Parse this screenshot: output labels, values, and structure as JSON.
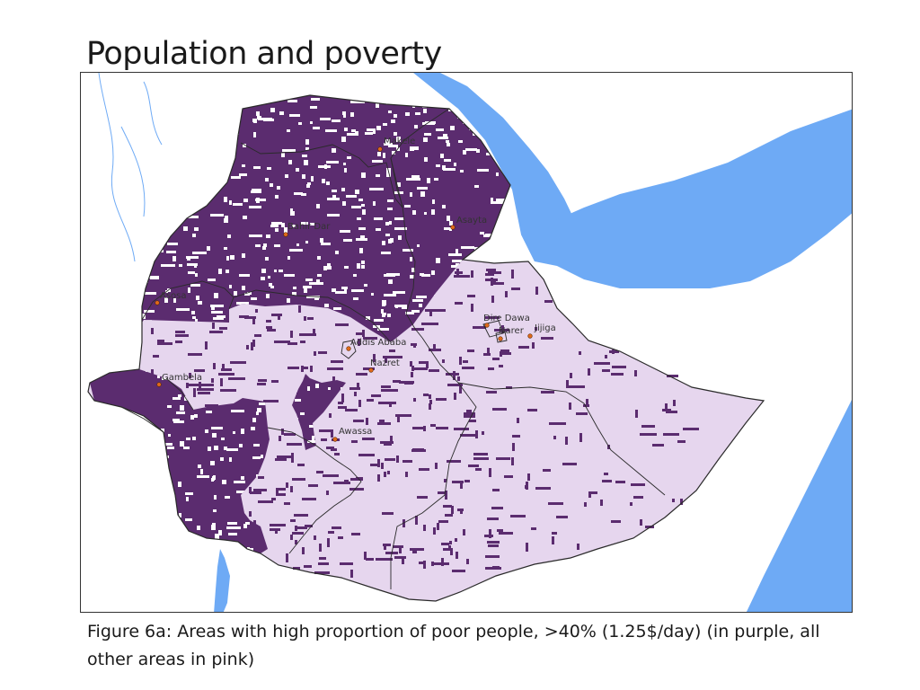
{
  "slide": {
    "title": "Population and poverty",
    "caption": "Figure  6a: Areas with high proportion of poor people, >40% (1.25$/day)  (in purple, all other areas in pink)"
  },
  "map": {
    "colors": {
      "water": "#6eaaf5",
      "high_poverty": "#5b2c6f",
      "other_areas": "#e6d6ee",
      "speckle": "#ffffff",
      "boundary": "#2a2a2a",
      "city_marker": "#e06a1a"
    },
    "cities": [
      {
        "id": "makele",
        "name": "Makele"
      },
      {
        "id": "asayta",
        "name": "Asayta"
      },
      {
        "id": "bahir-dar",
        "name": "Bahir Dar"
      },
      {
        "id": "asosa",
        "name": "Asosa"
      },
      {
        "id": "dire-dawa",
        "name": "Dire Dawa"
      },
      {
        "id": "harar",
        "name": "Harer"
      },
      {
        "id": "jijiga",
        "name": "Jijiga"
      },
      {
        "id": "addis-ababa",
        "name": "Addis Ababa"
      },
      {
        "id": "nazret",
        "name": "Nazret"
      },
      {
        "id": "gambela",
        "name": "Gambela"
      },
      {
        "id": "awassa",
        "name": "Awassa"
      }
    ]
  }
}
